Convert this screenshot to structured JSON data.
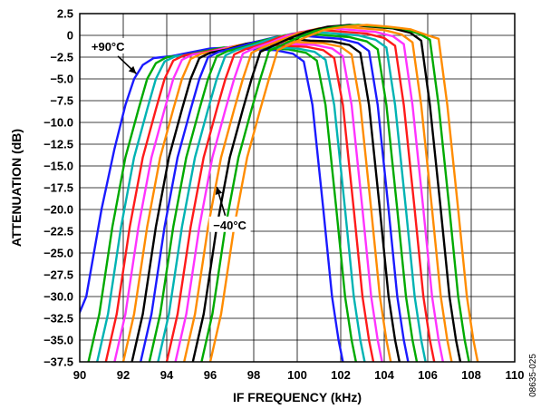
{
  "figure_id": "08635-025",
  "chart_data": {
    "type": "line",
    "title": "",
    "xlabel": "IF FREQUENCY (kHz)",
    "ylabel": "ATTENUATION (dB)",
    "xlim": [
      90,
      110
    ],
    "ylim": [
      -37.5,
      2.5
    ],
    "xticks": [
      90,
      92,
      94,
      96,
      98,
      100,
      102,
      104,
      106,
      108,
      110
    ],
    "xtick_labels": [
      "90",
      "92",
      "94",
      "96",
      "98",
      "100",
      "102",
      "104",
      "106",
      "108",
      "110"
    ],
    "yticks": [
      2.5,
      0,
      -2.5,
      -5,
      -7.5,
      -10,
      -12.5,
      -15,
      -17.5,
      -20,
      -22.5,
      -25,
      -27.5,
      -30,
      -32.5,
      -35,
      -37.5
    ],
    "ytick_labels": [
      "2.5",
      "0",
      "−2.5",
      "−5.0",
      "−7.5",
      "−10.0",
      "−12.5",
      "−15.0",
      "−17.5",
      "−20.0",
      "−22.5",
      "−25.0",
      "−27.5",
      "−30.0",
      "−32.5",
      "−35.0",
      "−37.5"
    ],
    "grid": true,
    "annotations": [
      {
        "text": "+90°C",
        "x": 91.3,
        "y": -1.3,
        "arrow_to": [
          92.6,
          -4.4
        ]
      },
      {
        "text": "−40°C",
        "x": 96.9,
        "y": -21.8,
        "arrow_to": [
          96.3,
          -17.4
        ]
      }
    ],
    "series": [
      {
        "color": "#1a1aff",
        "x": [
          89.8,
          90.3,
          91.0,
          91.6,
          92.1,
          92.5,
          92.9,
          93.4,
          94.2,
          95.0,
          96.0,
          97.0,
          98.0,
          99.0,
          99.8,
          100.3,
          100.7,
          101.2,
          101.6,
          101.9,
          102.1
        ],
        "y": [
          -33.0,
          -30.0,
          -20.0,
          -13.0,
          -8.0,
          -5.0,
          -3.4,
          -2.6,
          -2.4,
          -2.0,
          -1.5,
          -1.4,
          -1.6,
          -1.7,
          -2.1,
          -3.0,
          -8.0,
          -20.0,
          -30.0,
          -35.0,
          -37.5
        ]
      },
      {
        "color": "#00aa00",
        "x": [
          90.4,
          90.9,
          91.5,
          92.1,
          92.7,
          93.1,
          93.5,
          94.0,
          94.8,
          95.6,
          96.6,
          97.6,
          98.6,
          99.6,
          100.4,
          100.9,
          101.3,
          101.8,
          102.2,
          102.5,
          102.7
        ],
        "y": [
          -37.5,
          -32.0,
          -22.0,
          -14.0,
          -8.5,
          -5.0,
          -3.2,
          -2.5,
          -2.3,
          -1.9,
          -1.4,
          -1.3,
          -1.5,
          -1.6,
          -2.0,
          -2.9,
          -8.0,
          -20.0,
          -30.0,
          -35.0,
          -37.5
        ]
      },
      {
        "color": "#00b3b3",
        "x": [
          90.8,
          91.3,
          91.9,
          92.5,
          93.1,
          93.5,
          93.9,
          94.4,
          95.2,
          96.0,
          97.0,
          98.0,
          99.0,
          100.0,
          100.8,
          101.3,
          101.7,
          102.2,
          102.6,
          102.9,
          103.1
        ],
        "y": [
          -37.5,
          -32.0,
          -22.0,
          -14.0,
          -8.5,
          -5.0,
          -3.0,
          -2.4,
          -2.2,
          -1.8,
          -1.3,
          -1.2,
          -1.4,
          -1.5,
          -1.9,
          -2.8,
          -8.0,
          -20.0,
          -30.0,
          -35.0,
          -37.5
        ]
      },
      {
        "color": "#ff1a1a",
        "x": [
          91.2,
          91.7,
          92.3,
          92.9,
          93.5,
          93.9,
          94.3,
          94.8,
          95.6,
          96.4,
          97.4,
          98.4,
          99.4,
          100.4,
          101.2,
          101.7,
          102.1,
          102.6,
          103.0,
          103.3,
          103.5
        ],
        "y": [
          -37.5,
          -32.0,
          -22.0,
          -14.0,
          -8.5,
          -5.0,
          -2.9,
          -2.3,
          -2.0,
          -1.6,
          -1.1,
          -1.0,
          -1.2,
          -1.3,
          -1.7,
          -2.6,
          -8.0,
          -20.0,
          -30.0,
          -35.0,
          -37.5
        ]
      },
      {
        "color": "#ff33ff",
        "x": [
          91.6,
          92.1,
          92.7,
          93.3,
          93.9,
          94.3,
          94.7,
          95.2,
          96.0,
          96.8,
          97.8,
          98.8,
          99.8,
          100.8,
          101.6,
          102.1,
          102.5,
          103.0,
          103.4,
          103.7,
          103.9
        ],
        "y": [
          -37.5,
          -32.0,
          -22.0,
          -14.0,
          -8.5,
          -5.0,
          -2.8,
          -2.2,
          -1.9,
          -1.4,
          -0.9,
          -0.8,
          -1.0,
          -1.1,
          -1.5,
          -2.4,
          -8.0,
          -20.0,
          -30.0,
          -35.0,
          -37.5
        ]
      },
      {
        "color": "#ff8c00",
        "x": [
          92.0,
          92.5,
          93.1,
          93.7,
          94.3,
          94.7,
          95.1,
          95.6,
          96.4,
          97.2,
          98.2,
          99.2,
          100.2,
          101.2,
          102.0,
          102.5,
          102.9,
          103.4,
          103.8,
          104.1,
          104.3
        ],
        "y": [
          -37.5,
          -32.0,
          -22.0,
          -14.0,
          -8.5,
          -5.0,
          -2.7,
          -2.1,
          -1.8,
          -1.2,
          -0.7,
          -0.6,
          -0.8,
          -0.9,
          -1.3,
          -2.2,
          -8.0,
          -20.0,
          -30.0,
          -35.0,
          -37.5
        ]
      },
      {
        "color": "#000000",
        "x": [
          92.4,
          92.9,
          93.5,
          94.1,
          94.7,
          95.1,
          95.5,
          96.0,
          96.8,
          97.6,
          98.6,
          99.6,
          100.6,
          101.6,
          102.4,
          102.9,
          103.3,
          103.8,
          104.2,
          104.5,
          104.7
        ],
        "y": [
          -37.5,
          -32.0,
          -22.0,
          -14.0,
          -8.5,
          -5.0,
          -2.6,
          -2.0,
          -1.6,
          -1.0,
          -0.5,
          -0.4,
          -0.6,
          -0.7,
          -1.1,
          -2.0,
          -8.0,
          -20.0,
          -30.0,
          -35.0,
          -37.5
        ]
      },
      {
        "color": "#1a1aff",
        "x": [
          92.8,
          93.3,
          93.9,
          94.5,
          95.1,
          95.5,
          95.9,
          96.4,
          97.2,
          98.0,
          99.0,
          100.0,
          101.0,
          102.0,
          102.8,
          103.3,
          103.7,
          104.2,
          104.6,
          104.9,
          105.1
        ],
        "y": [
          -37.5,
          -32.0,
          -22.0,
          -14.0,
          -8.5,
          -5.0,
          -2.5,
          -1.9,
          -1.4,
          -0.8,
          -0.2,
          0.0,
          -0.2,
          -0.4,
          -0.9,
          -1.8,
          -8.0,
          -20.0,
          -30.0,
          -35.0,
          -37.5
        ]
      },
      {
        "color": "#00aa00",
        "x": [
          93.2,
          93.7,
          94.3,
          94.9,
          95.5,
          95.9,
          96.3,
          96.8,
          97.6,
          98.4,
          99.4,
          100.4,
          101.4,
          102.4,
          103.2,
          103.7,
          104.1,
          104.6,
          105.0,
          105.3,
          105.5
        ],
        "y": [
          -37.5,
          -32.0,
          -22.0,
          -14.0,
          -8.5,
          -5.0,
          -2.4,
          -1.8,
          -1.3,
          -0.6,
          0.0,
          0.2,
          0.0,
          -0.2,
          -0.7,
          -1.6,
          -8.0,
          -20.0,
          -30.0,
          -35.0,
          -37.5
        ]
      },
      {
        "color": "#00b3b3",
        "x": [
          93.6,
          94.1,
          94.7,
          95.3,
          95.9,
          96.3,
          96.7,
          97.2,
          98.0,
          98.8,
          99.8,
          100.8,
          101.8,
          102.8,
          103.6,
          104.1,
          104.5,
          105.0,
          105.4,
          105.7,
          105.9
        ],
        "y": [
          -37.5,
          -32.0,
          -22.0,
          -14.0,
          -8.5,
          -5.0,
          -2.3,
          -1.7,
          -1.1,
          -0.4,
          0.2,
          0.4,
          0.2,
          0.0,
          -0.5,
          -1.4,
          -8.0,
          -20.0,
          -30.0,
          -35.0,
          -37.5
        ]
      },
      {
        "color": "#ff1a1a",
        "x": [
          94.0,
          94.5,
          95.1,
          95.7,
          96.3,
          96.7,
          97.1,
          97.6,
          98.4,
          99.2,
          100.2,
          101.2,
          102.2,
          103.2,
          104.0,
          104.5,
          104.9,
          105.4,
          105.8,
          106.1,
          106.3
        ],
        "y": [
          -37.5,
          -32.0,
          -22.0,
          -14.0,
          -8.5,
          -5.0,
          -2.2,
          -1.6,
          -1.0,
          -0.2,
          0.4,
          0.6,
          0.4,
          0.2,
          -0.3,
          -1.2,
          -8.0,
          -20.0,
          -30.0,
          -35.0,
          -37.5
        ]
      },
      {
        "color": "#ff33ff",
        "x": [
          94.4,
          94.9,
          95.5,
          96.1,
          96.7,
          97.1,
          97.5,
          98.0,
          98.8,
          99.6,
          100.6,
          101.6,
          102.6,
          103.6,
          104.4,
          104.9,
          105.3,
          105.8,
          106.2,
          106.5,
          106.7
        ],
        "y": [
          -37.5,
          -32.0,
          -22.0,
          -14.0,
          -8.5,
          -5.0,
          -2.1,
          -1.5,
          -0.8,
          0.0,
          0.6,
          0.8,
          0.6,
          0.4,
          -0.1,
          -1.0,
          -8.0,
          -20.0,
          -30.0,
          -35.0,
          -37.5
        ]
      },
      {
        "color": "#ff8c00",
        "x": [
          94.8,
          95.3,
          95.9,
          96.5,
          97.1,
          97.5,
          97.9,
          98.4,
          99.2,
          100.0,
          101.0,
          102.0,
          103.0,
          104.0,
          104.8,
          105.3,
          105.7,
          106.2,
          106.6,
          106.9,
          107.1
        ],
        "y": [
          -37.5,
          -32.0,
          -22.0,
          -14.0,
          -8.5,
          -5.0,
          -2.0,
          -1.4,
          -0.6,
          0.2,
          0.8,
          1.0,
          0.8,
          0.6,
          0.1,
          -0.8,
          -8.0,
          -20.0,
          -30.0,
          -35.0,
          -37.5
        ]
      },
      {
        "color": "#000000",
        "x": [
          95.2,
          95.7,
          96.3,
          96.9,
          97.5,
          97.9,
          98.3,
          98.8,
          99.6,
          100.4,
          101.4,
          102.4,
          103.4,
          104.4,
          105.2,
          105.7,
          106.1,
          106.6,
          107.0,
          107.3,
          107.5
        ],
        "y": [
          -37.5,
          -32.0,
          -22.0,
          -14.0,
          -8.5,
          -5.0,
          -1.9,
          -1.3,
          -0.4,
          0.4,
          1.0,
          1.2,
          1.0,
          0.8,
          0.3,
          -0.6,
          -8.0,
          -20.0,
          -30.0,
          -35.0,
          -37.5
        ]
      },
      {
        "color": "#00aa00",
        "x": [
          95.6,
          96.1,
          96.7,
          97.3,
          97.9,
          98.3,
          98.7,
          99.2,
          100.0,
          100.8,
          101.8,
          102.8,
          103.8,
          104.8,
          105.6,
          106.1,
          106.5,
          107.0,
          107.4,
          107.7,
          107.9
        ],
        "y": [
          -37.5,
          -32.0,
          -22.0,
          -14.0,
          -8.5,
          -5.0,
          -1.8,
          -1.2,
          -0.3,
          0.5,
          1.0,
          1.2,
          1.0,
          0.8,
          0.2,
          -0.5,
          -8.0,
          -20.0,
          -30.0,
          -35.0,
          -37.5
        ]
      },
      {
        "color": "#ff8c00",
        "x": [
          96.0,
          96.5,
          97.1,
          97.7,
          98.3,
          98.7,
          99.1,
          99.6,
          100.4,
          101.2,
          102.2,
          103.2,
          104.2,
          105.2,
          106.0,
          106.5,
          106.9,
          107.4,
          107.8,
          108.1,
          108.3
        ],
        "y": [
          -37.5,
          -32.0,
          -22.0,
          -14.0,
          -8.5,
          -5.0,
          -1.7,
          -1.1,
          -0.2,
          0.6,
          1.0,
          1.2,
          1.0,
          0.7,
          0.0,
          -0.4,
          -8.0,
          -20.0,
          -30.0,
          -35.0,
          -37.5
        ]
      }
    ]
  }
}
